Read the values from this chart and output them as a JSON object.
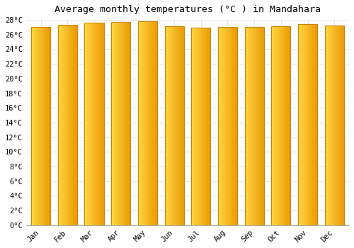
{
  "title": "Average monthly temperatures (°C ) in Mandahara",
  "months": [
    "Jan",
    "Feb",
    "Mar",
    "Apr",
    "May",
    "Jun",
    "Jul",
    "Aug",
    "Sep",
    "Oct",
    "Nov",
    "Dec"
  ],
  "values": [
    27.0,
    27.3,
    27.6,
    27.7,
    27.8,
    27.1,
    26.9,
    27.0,
    27.0,
    27.1,
    27.4,
    27.2
  ],
  "bar_color_light": "#FFD050",
  "bar_color_dark": "#F0A000",
  "bar_edge_color": "#C88000",
  "background_color": "#FFFFFF",
  "grid_color": "#DDDDDD",
  "ylim": [
    0,
    28
  ],
  "ytick_step": 2,
  "title_fontsize": 9.5,
  "tick_fontsize": 7.5,
  "font_family": "monospace"
}
